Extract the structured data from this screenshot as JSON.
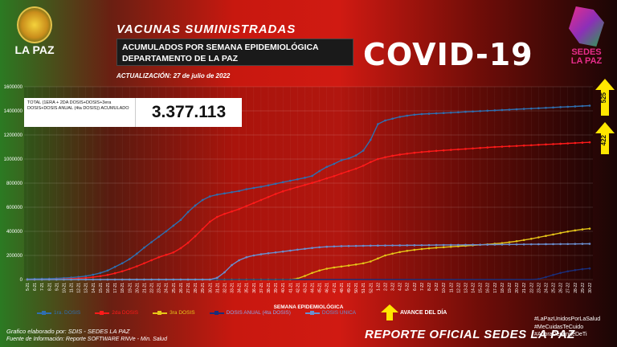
{
  "header": {
    "title": "VACUNAS SUMINISTRADAS",
    "subtitle_line1": "ACUMULADOS POR SEMANA EPIDEMIOLÓGICA",
    "subtitle_line2": "DEPARTAMENTO DE LA PAZ",
    "covid": "COVID-19",
    "update": "ACTUALIZACIÓN: 27 de julio de 2022"
  },
  "logo_left": {
    "text": "LA PAZ"
  },
  "logo_right": {
    "line1": "SEDES",
    "line2": "LA PAZ"
  },
  "total": {
    "label": "TOTAL (1ERA + 2DA DOSIS+DOSIS+3era DOSIS+DOSIS ANUAL (4ta DOSIS)) ACUMULADO",
    "value": "3.377.113"
  },
  "arrows": {
    "top_value": "525",
    "mid_value": "422",
    "avance_label": "AVANCE DEL DÍA"
  },
  "footer": {
    "line1": "Grafico elaborado por: SDIS - SEDES LA PAZ",
    "line2": "Fuente de Información: Reporte SOFTWARE RNVe - Min. Salud",
    "reporte": "REPORTE OFICIAL SEDES LA PAZ",
    "tags": [
      "#LaPazUnidosPorLaSalud",
      "#MeCuidasTeCuido",
      "#AhoraDependeDeTi"
    ]
  },
  "chart_data": {
    "type": "line",
    "xlabel": "SEMANA EPIDEMIOLÓGICA",
    "ylabel": "",
    "ylim": [
      0,
      1600000
    ],
    "yticks": [
      "0",
      "200000",
      "400000",
      "600000",
      "800000",
      "1000000",
      "1200000",
      "1400000",
      "1600000"
    ],
    "x": [
      "5-21",
      "6-21",
      "7-21",
      "8-21",
      "9-21",
      "10-21",
      "11-21",
      "12-21",
      "13-21",
      "14-21",
      "15-21",
      "16-21",
      "17-21",
      "18-21",
      "19-21",
      "20-21",
      "21-21",
      "22-21",
      "23-21",
      "24-21",
      "25-21",
      "26-21",
      "27-21",
      "28-21",
      "29-21",
      "30-21",
      "31-21",
      "32-21",
      "33-21",
      "34-21",
      "35-21",
      "36-21",
      "37-21",
      "38-21",
      "39-21",
      "40-21",
      "41-21",
      "42-21",
      "43-21",
      "44-21",
      "45-21",
      "46-21",
      "47-21",
      "48-21",
      "49-21",
      "50-21",
      "51-21",
      "52-21",
      "1-22",
      "2-22",
      "3-22",
      "4-22",
      "5-22",
      "6-22",
      "7-22",
      "8-22",
      "9-22",
      "10-22",
      "11-22",
      "12-22",
      "13-22",
      "14-22",
      "15-22",
      "16-22",
      "17-22",
      "18-22",
      "19-22",
      "20-22",
      "21-22",
      "22-22",
      "23-22",
      "24-22",
      "25-22",
      "26-22",
      "27-22",
      "28-22",
      "29-22",
      "30-22"
    ],
    "series": [
      {
        "name": "1ra. DOSIS",
        "color": "#2f6fb0",
        "values": [
          3912,
          5200,
          6300,
          7400,
          9200,
          12500,
          16000,
          21000,
          28000,
          40000,
          55000,
          75000,
          105000,
          135000,
          170000,
          215000,
          265000,
          310000,
          355000,
          400000,
          447000,
          495000,
          560000,
          615000,
          660000,
          690000,
          705000,
          715000,
          725000,
          735000,
          750000,
          760000,
          770000,
          782000,
          795000,
          808000,
          820000,
          832000,
          845000,
          860000,
          900000,
          935000,
          960000,
          990000,
          1005000,
          1030000,
          1070000,
          1160000,
          1290000,
          1320000,
          1335000,
          1350000,
          1360000,
          1368000,
          1373000,
          1376000,
          1379000,
          1382000,
          1385000,
          1388000,
          1392000,
          1395000,
          1398000,
          1401000,
          1404000,
          1407000,
          1410000,
          1413000,
          1416000,
          1419000,
          1422000,
          1425000,
          1428000,
          1431000,
          1434000,
          1437000,
          1440000,
          1443377
        ]
      },
      {
        "name": "2da DOSIS",
        "color": "#ff1a1a",
        "values": [
          0,
          0,
          500,
          1200,
          2500,
          4000,
          6500,
          9500,
          14000,
          20000,
          28000,
          38000,
          52000,
          68000,
          88000,
          110000,
          135000,
          160000,
          185000,
          205000,
          225000,
          260000,
          305000,
          360000,
          420000,
          480000,
          520000,
          545000,
          565000,
          585000,
          610000,
          635000,
          660000,
          685000,
          710000,
          732000,
          750000,
          768000,
          785000,
          802000,
          820000,
          840000,
          858000,
          880000,
          900000,
          920000,
          945000,
          975000,
          1000000,
          1015000,
          1027000,
          1037000,
          1045000,
          1052000,
          1058000,
          1063000,
          1068000,
          1072000,
          1076000,
          1080000,
          1084000,
          1088000,
          1092000,
          1096000,
          1100000,
          1103000,
          1106000,
          1109000,
          1112000,
          1115000,
          1118000,
          1121000,
          1124000,
          1127000,
          1130000,
          1133000,
          1136000,
          1138942
        ]
      },
      {
        "name": "3ra DOSIS",
        "color": "#e6c619",
        "values": [
          0,
          0,
          0,
          0,
          0,
          0,
          0,
          0,
          0,
          0,
          0,
          0,
          0,
          0,
          0,
          0,
          0,
          0,
          0,
          0,
          0,
          0,
          0,
          0,
          0,
          0,
          0,
          0,
          0,
          0,
          0,
          0,
          0,
          0,
          0,
          0,
          0,
          8000,
          30000,
          55000,
          75000,
          90000,
          100000,
          108000,
          116000,
          125000,
          135000,
          150000,
          175000,
          200000,
          215000,
          228000,
          238000,
          246000,
          253000,
          259000,
          264000,
          268000,
          272000,
          276000,
          280000,
          284000,
          288000,
          292000,
          297000,
          302000,
          310000,
          318000,
          328000,
          338000,
          350000,
          362000,
          374000,
          386000,
          398000,
          408000,
          416000,
          422422
        ]
      },
      {
        "name": "DOSIS ANUAL (4ta DOSIS)",
        "color": "#1a2e7a",
        "values": [
          0,
          0,
          0,
          0,
          0,
          0,
          0,
          0,
          0,
          0,
          0,
          0,
          0,
          0,
          0,
          0,
          0,
          0,
          0,
          0,
          0,
          0,
          0,
          0,
          0,
          0,
          0,
          0,
          0,
          0,
          0,
          0,
          0,
          0,
          0,
          0,
          0,
          0,
          0,
          0,
          0,
          0,
          0,
          0,
          0,
          0,
          0,
          0,
          0,
          0,
          0,
          0,
          0,
          0,
          0,
          0,
          0,
          0,
          0,
          0,
          0,
          0,
          0,
          0,
          0,
          0,
          0,
          0,
          0,
          0,
          5000,
          20000,
          38000,
          55000,
          68000,
          78000,
          86000,
          92000
        ]
      },
      {
        "name": "DOSIS UNICA",
        "color": "#6a8fd0",
        "values": [
          0,
          0,
          0,
          0,
          0,
          0,
          0,
          0,
          0,
          0,
          0,
          0,
          0,
          0,
          0,
          0,
          0,
          0,
          0,
          0,
          0,
          0,
          0,
          0,
          0,
          0,
          15000,
          60000,
          120000,
          160000,
          185000,
          200000,
          210000,
          218000,
          225000,
          232000,
          240000,
          248000,
          255000,
          262000,
          268000,
          272000,
          275000,
          277000,
          278000,
          279000,
          280000,
          281000,
          282000,
          282500,
          283000,
          283500,
          284000,
          284500,
          285000,
          285500,
          286000,
          286500,
          287000,
          287500,
          288000,
          288500,
          289000,
          289500,
          290000,
          290500,
          291000,
          291500,
          292000,
          292500,
          293000,
          293500,
          294000,
          294500,
          295000,
          295500,
          296000,
          296500
        ]
      }
    ],
    "legend": "bottom",
    "grid": true
  }
}
